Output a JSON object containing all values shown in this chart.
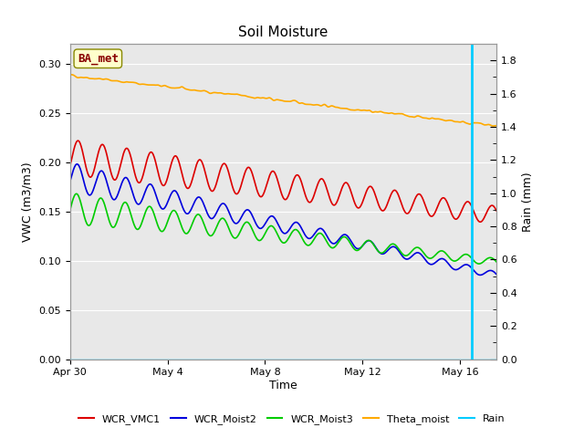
{
  "title": "Soil Moisture",
  "xlabel": "Time",
  "ylabel_left": "VWC (m3/m3)",
  "ylabel_right": "Rain (mm)",
  "xlim_days": [
    0,
    17.5
  ],
  "ylim_left": [
    0.0,
    0.32
  ],
  "ylim_right": [
    0.0,
    1.9
  ],
  "yticks_left": [
    0.0,
    0.05,
    0.1,
    0.15,
    0.2,
    0.25,
    0.3
  ],
  "yticks_right_major": [
    0.0,
    0.2,
    0.4,
    0.6,
    0.8,
    1.0,
    1.2,
    1.4,
    1.6,
    1.8
  ],
  "xtick_labels": [
    "Apr 30",
    "May 4",
    "May 8",
    "May 12",
    "May 16"
  ],
  "xtick_positions": [
    0,
    4,
    8,
    12,
    16
  ],
  "fig_bg_color": "#ffffff",
  "plot_bg_color": "#e8e8e8",
  "grid_color": "#ffffff",
  "annotation_label": "BA_met",
  "cyan_line_x": 16.5,
  "n_points": 800,
  "days_start": 0,
  "days_end": 17.5,
  "series_colors": {
    "WCR_VMC1": "#dd0000",
    "WCR_Moist2": "#0000dd",
    "WCR_Moist3": "#00cc00",
    "Theta_moist": "#ffaa00",
    "Rain": "#00ccff"
  }
}
